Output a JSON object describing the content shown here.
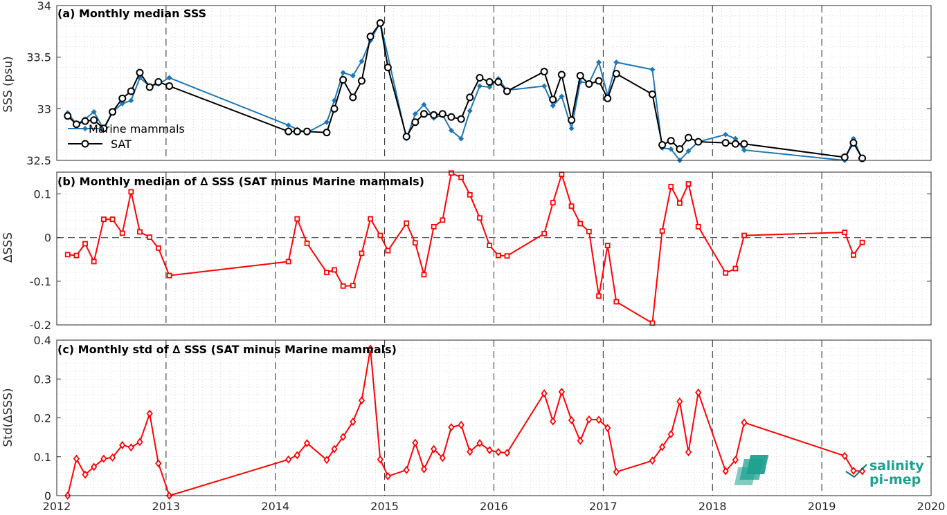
{
  "chart_data": [
    {
      "type": "line",
      "title": "(a) Monthly median SSS",
      "ylabel": "SSS (psu)",
      "xlim": [
        2012,
        2020
      ],
      "ylim": [
        32.5,
        34
      ],
      "yticks": [
        32.5,
        33,
        33.5,
        34
      ],
      "ytick_labels": [
        "32.5",
        "33",
        "33.5",
        "34"
      ],
      "grid": true,
      "legend_position": "left",
      "series": [
        {
          "name": "Marine mammals",
          "color": "#1f77b4",
          "marker": "diamond",
          "x": [
            2012.1,
            2012.18,
            2012.26,
            2012.34,
            2012.43,
            2012.51,
            2012.6,
            2012.68,
            2012.76,
            2012.85,
            2012.93,
            2013.03,
            2014.12,
            2014.2,
            2014.29,
            2014.47,
            2014.54,
            2014.62,
            2014.71,
            2014.79,
            2014.87,
            2014.96,
            2015.2,
            2015.28,
            2015.36,
            2015.45,
            2015.53,
            2015.61,
            2015.7,
            2015.78,
            2015.87,
            2015.96,
            2016.04,
            2016.12,
            2016.46,
            2016.54,
            2016.62,
            2016.71,
            2016.79,
            2016.87,
            2016.96,
            2017.04,
            2017.12,
            2017.45,
            2017.54,
            2017.62,
            2017.7,
            2017.78,
            2017.87,
            2018.12,
            2018.21,
            2018.29,
            2019.21,
            2019.29,
            2019.37
          ],
          "y": [
            32.96,
            32.85,
            32.9,
            32.97,
            32.8,
            32.97,
            33.05,
            33.08,
            33.3,
            33.22,
            33.24,
            33.3,
            32.84,
            32.8,
            32.77,
            32.87,
            33.08,
            33.35,
            33.32,
            33.46,
            33.66,
            33.84,
            32.71,
            32.95,
            33.04,
            32.91,
            32.94,
            32.79,
            32.71,
            32.98,
            33.22,
            33.21,
            33.29,
            33.18,
            33.22,
            33.03,
            33.12,
            32.81,
            33.26,
            33.25,
            33.45,
            33.13,
            33.45,
            33.38,
            32.62,
            32.61,
            32.5,
            32.59,
            32.68,
            32.75,
            32.71,
            32.6,
            32.5,
            32.71,
            32.51
          ]
        },
        {
          "name": "SAT",
          "color": "#000000",
          "marker": "circle",
          "x": [
            2012.1,
            2012.18,
            2012.26,
            2012.34,
            2012.43,
            2012.51,
            2012.6,
            2012.68,
            2012.76,
            2012.85,
            2012.93,
            2013.03,
            2014.12,
            2014.2,
            2014.29,
            2014.47,
            2014.54,
            2014.62,
            2014.71,
            2014.79,
            2014.87,
            2014.96,
            2015.03,
            2015.2,
            2015.28,
            2015.36,
            2015.45,
            2015.53,
            2015.61,
            2015.7,
            2015.78,
            2015.87,
            2015.96,
            2016.04,
            2016.12,
            2016.46,
            2016.54,
            2016.62,
            2016.71,
            2016.79,
            2016.87,
            2016.96,
            2017.04,
            2017.12,
            2017.45,
            2017.54,
            2017.62,
            2017.7,
            2017.78,
            2017.87,
            2018.12,
            2018.21,
            2018.29,
            2019.21,
            2019.29,
            2019.37
          ],
          "y": [
            32.93,
            32.85,
            32.88,
            32.89,
            32.81,
            32.97,
            33.1,
            33.17,
            33.35,
            33.21,
            33.26,
            33.22,
            32.78,
            32.78,
            32.78,
            32.77,
            33.0,
            33.28,
            33.11,
            33.27,
            33.7,
            33.83,
            33.4,
            32.73,
            32.87,
            32.95,
            32.94,
            32.95,
            32.92,
            32.9,
            33.11,
            33.3,
            33.26,
            33.26,
            33.17,
            33.36,
            33.09,
            33.33,
            32.89,
            33.32,
            33.24,
            33.27,
            33.1,
            33.34,
            33.14,
            32.65,
            32.69,
            32.61,
            32.72,
            32.68,
            32.67,
            32.66,
            32.66,
            32.53,
            32.67,
            32.52
          ]
        }
      ]
    },
    {
      "type": "line",
      "title": "(b) Monthly median of ∆ SSS (SAT minus Marine mammals)",
      "ylabel": "∆SSS",
      "xlim": [
        2012,
        2020
      ],
      "ylim": [
        -0.2,
        0.15
      ],
      "yticks": [
        -0.2,
        -0.1,
        0,
        0.1
      ],
      "ytick_labels": [
        "-0.2",
        "-0.1",
        "0",
        "0.1"
      ],
      "reference_line": 0,
      "grid": true,
      "series": [
        {
          "color": "#ff0000",
          "marker": "square",
          "x": [
            2012.1,
            2012.18,
            2012.26,
            2012.34,
            2012.43,
            2012.51,
            2012.6,
            2012.68,
            2012.76,
            2012.85,
            2012.93,
            2013.03,
            2014.12,
            2014.2,
            2014.29,
            2014.47,
            2014.54,
            2014.62,
            2014.71,
            2014.79,
            2014.87,
            2014.96,
            2015.03,
            2015.2,
            2015.28,
            2015.36,
            2015.45,
            2015.53,
            2015.61,
            2015.7,
            2015.78,
            2015.87,
            2015.96,
            2016.04,
            2016.12,
            2016.46,
            2016.54,
            2016.62,
            2016.71,
            2016.79,
            2016.87,
            2016.96,
            2017.04,
            2017.12,
            2017.45,
            2017.54,
            2017.62,
            2017.7,
            2017.78,
            2017.87,
            2018.12,
            2018.21,
            2018.29,
            2019.21,
            2019.29,
            2019.37
          ],
          "y": [
            -0.039,
            -0.041,
            -0.014,
            -0.055,
            0.042,
            0.042,
            0.01,
            0.105,
            0.013,
            0.001,
            -0.024,
            -0.087,
            -0.055,
            0.043,
            -0.013,
            -0.08,
            -0.074,
            -0.111,
            -0.11,
            -0.036,
            0.043,
            0.005,
            -0.03,
            0.033,
            -0.012,
            -0.085,
            0.025,
            0.04,
            0.148,
            0.138,
            0.098,
            0.045,
            -0.018,
            -0.041,
            -0.042,
            0.009,
            0.08,
            0.145,
            0.072,
            0.032,
            0.014,
            -0.134,
            -0.018,
            -0.147,
            -0.196,
            0.015,
            0.117,
            0.079,
            0.123,
            0.025,
            -0.081,
            -0.071,
            0.005,
            0.012,
            -0.04,
            -0.011
          ]
        }
      ]
    },
    {
      "type": "line",
      "title": "(c) Monthly std of ∆ SSS (SAT minus Marine mammals)",
      "ylabel": "Std(∆SSS)",
      "xlabel": "",
      "xlim": [
        2012,
        2020
      ],
      "ylim": [
        0,
        0.4
      ],
      "yticks": [
        0,
        0.1,
        0.2,
        0.3,
        0.4
      ],
      "ytick_labels": [
        "0",
        "0.1",
        "0.2",
        "0.3",
        "0.4"
      ],
      "xticks": [
        2012,
        2013,
        2014,
        2015,
        2016,
        2017,
        2018,
        2019,
        2020
      ],
      "xtick_labels": [
        "2012",
        "2013",
        "2014",
        "2015",
        "2016",
        "2017",
        "2018",
        "2019",
        "2020"
      ],
      "grid": true,
      "series": [
        {
          "color": "#ff0000",
          "marker": "diamond",
          "x": [
            2012.1,
            2012.18,
            2012.26,
            2012.34,
            2012.43,
            2012.51,
            2012.6,
            2012.68,
            2012.76,
            2012.85,
            2012.93,
            2013.03,
            2014.12,
            2014.2,
            2014.29,
            2014.47,
            2014.54,
            2014.62,
            2014.71,
            2014.79,
            2014.87,
            2014.96,
            2015.03,
            2015.2,
            2015.28,
            2015.36,
            2015.45,
            2015.53,
            2015.61,
            2015.7,
            2015.78,
            2015.87,
            2015.96,
            2016.04,
            2016.12,
            2016.46,
            2016.54,
            2016.62,
            2016.71,
            2016.79,
            2016.87,
            2016.96,
            2017.04,
            2017.12,
            2017.45,
            2017.54,
            2017.62,
            2017.7,
            2017.78,
            2017.87,
            2018.12,
            2018.21,
            2018.29,
            2019.21,
            2019.29,
            2019.37
          ],
          "y": [
            0.0,
            0.095,
            0.054,
            0.074,
            0.095,
            0.098,
            0.13,
            0.124,
            0.138,
            0.211,
            0.083,
            0.0,
            0.093,
            0.104,
            0.135,
            0.092,
            0.12,
            0.151,
            0.19,
            0.245,
            0.378,
            0.093,
            0.05,
            0.066,
            0.136,
            0.068,
            0.12,
            0.097,
            0.176,
            0.182,
            0.113,
            0.135,
            0.117,
            0.112,
            0.11,
            0.263,
            0.191,
            0.267,
            0.194,
            0.141,
            0.196,
            0.195,
            0.174,
            0.061,
            0.09,
            0.125,
            0.158,
            0.242,
            0.112,
            0.265,
            0.063,
            0.092,
            0.188,
            0.102,
            0.064,
            0.063
          ]
        }
      ]
    }
  ],
  "logo": {
    "line1": "salinity",
    "line2": "pi-mep",
    "color": "#1fa08f"
  }
}
